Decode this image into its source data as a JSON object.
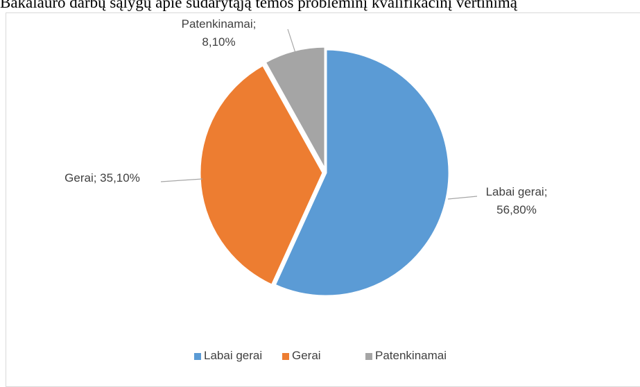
{
  "chart_data": {
    "type": "pie",
    "title": "Bakalauro darbų sąlygų apie sudarytąją temos probleminį kvalifikacinį vertinimą",
    "categories": [
      "Labai gerai",
      "Gerai",
      "Patenkinamai"
    ],
    "values": [
      56.8,
      35.1,
      8.1
    ],
    "value_labels": [
      "Labai gerai; 56,80%",
      "Gerai; 35,10%",
      "Patenkinamai; 8,10%"
    ],
    "colors": [
      "#5b9bd5",
      "#ed7d31",
      "#a5a5a5"
    ],
    "legend": "bottom"
  }
}
